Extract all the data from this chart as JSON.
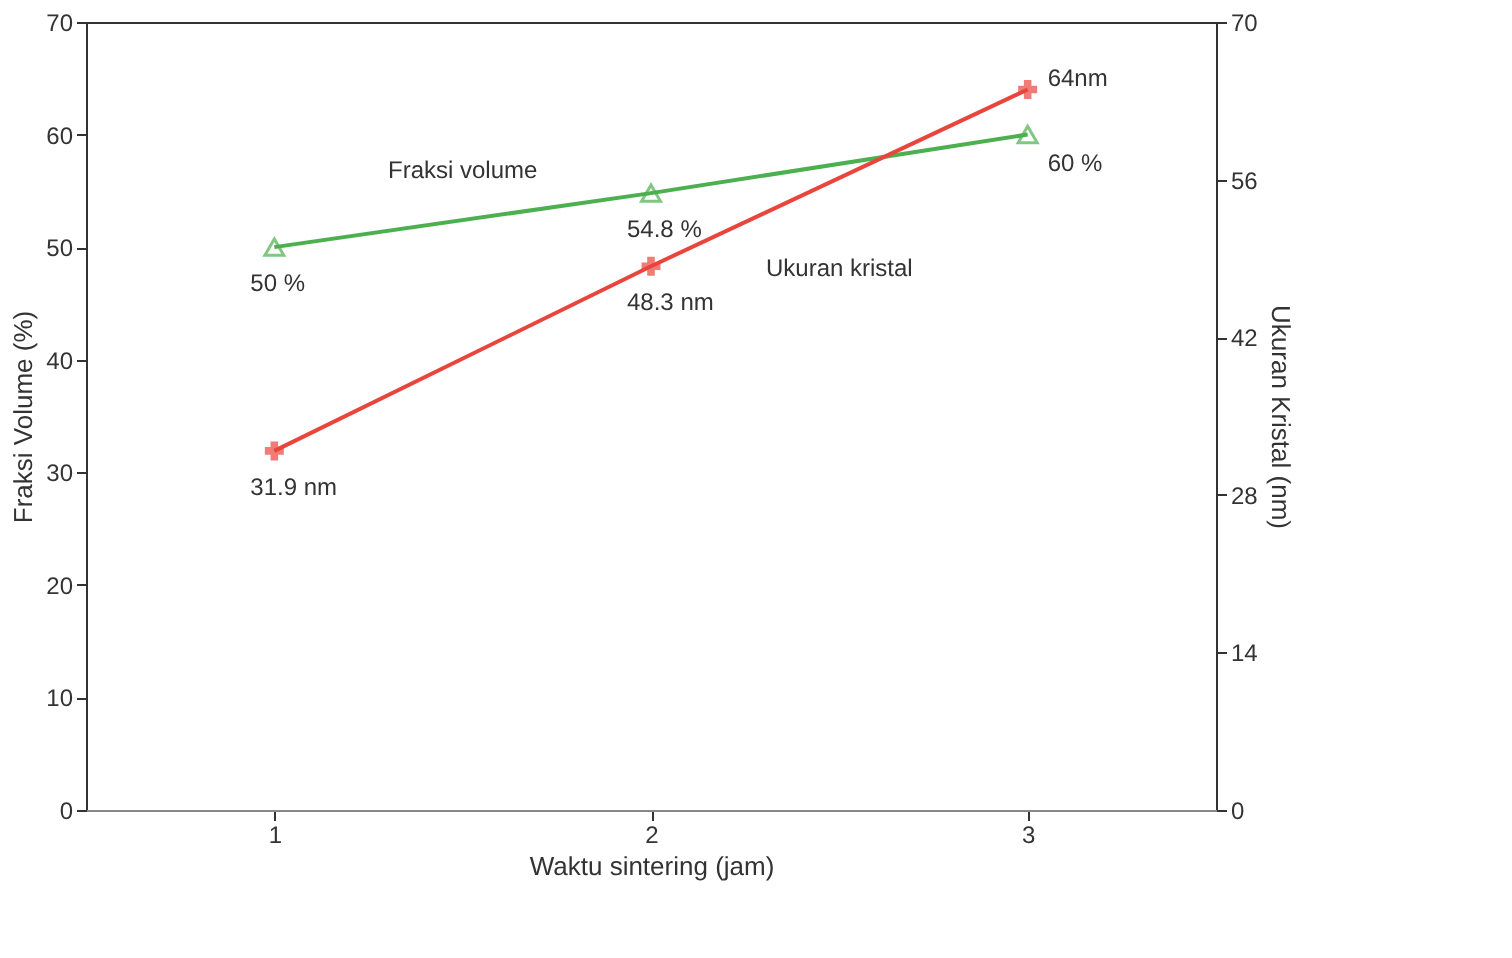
{
  "chart_data": {
    "type": "line",
    "xlabel": "Waktu sintering (jam)",
    "ylabel": "Fraksi Volume (%)",
    "y2label": "Ukuran Kristal (nm)",
    "x": [
      1,
      2,
      3
    ],
    "xlim": [
      0.5,
      3.5
    ],
    "xticks": [
      1,
      2,
      3
    ],
    "ylim": [
      0,
      70
    ],
    "yticks": [
      0,
      10,
      20,
      30,
      40,
      50,
      60,
      70
    ],
    "y2lim": [
      0,
      70
    ],
    "y2ticks": [
      0,
      14,
      28,
      42,
      56,
      70
    ],
    "grid": false,
    "line_style": "solid",
    "series": [
      {
        "name": "Fraksi volume",
        "color": "#4caf50",
        "marker": "triangle",
        "axis": "y",
        "values": [
          50,
          54.8,
          60
        ],
        "value_labels": [
          "50 %",
          "54.8  %",
          "60 %"
        ]
      },
      {
        "name": "Ukuran kristal",
        "color": "#e8453c",
        "marker": "cross",
        "axis": "y2",
        "values": [
          31.9,
          48.3,
          64
        ],
        "value_labels": [
          "31.9 nm",
          "48.3 nm",
          "64nm"
        ]
      }
    ]
  }
}
